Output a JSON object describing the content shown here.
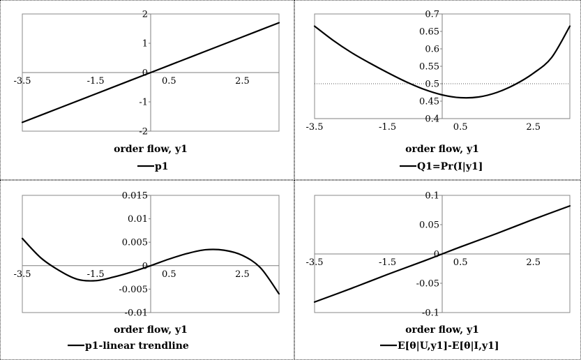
{
  "chart_data": [
    {
      "type": "line",
      "xlabel": "order flow, y1",
      "ylabel": "",
      "xlim": [
        -3.5,
        3.5
      ],
      "ylim": [
        -2,
        2
      ],
      "xticks": [
        -3.5,
        -1.5,
        0.5,
        2.5
      ],
      "xtick_labels": [
        "-3.5",
        "-1.5",
        "0.5",
        "2.5"
      ],
      "yticks": [
        -2,
        -1,
        0,
        1,
        2
      ],
      "ytick_labels": [
        "-2",
        "-1",
        "0",
        "1",
        "2"
      ],
      "reference_line": null,
      "series": [
        {
          "name": "p1",
          "color": "#000000",
          "x": [
            -3.5,
            -2.5,
            -1.5,
            -0.5,
            0,
            0.5,
            1.5,
            2.5,
            3.5
          ],
          "y": [
            -1.7,
            -1.214,
            -0.729,
            -0.243,
            0,
            0.243,
            0.729,
            1.214,
            1.7
          ]
        }
      ],
      "legend": [
        "p1"
      ]
    },
    {
      "type": "line",
      "xlabel": "order flow, y1",
      "ylabel": "",
      "xlim": [
        -3.5,
        3.5
      ],
      "ylim": [
        0.4,
        0.7
      ],
      "xticks": [
        -3.5,
        -1.5,
        0.5,
        2.5
      ],
      "xtick_labels": [
        "-3.5",
        "-1.5",
        "0.5",
        "2.5"
      ],
      "yticks": [
        0.4,
        0.45,
        0.5,
        0.55,
        0.6,
        0.65,
        0.7
      ],
      "ytick_labels": [
        "0.4",
        "0.45",
        "0.5",
        "0.55",
        "0.6",
        "0.65",
        "0.7"
      ],
      "reference_line": 0.5,
      "series": [
        {
          "name": "Q1=Pr(I|y1]",
          "color": "#000000",
          "x": [
            -3.5,
            -3.0,
            -2.5,
            -2.0,
            -1.5,
            -1.0,
            -0.5,
            0,
            0.5,
            1.0,
            1.5,
            2.0,
            2.5,
            3.0,
            3.5
          ],
          "y": [
            0.665,
            0.625,
            0.59,
            0.56,
            0.532,
            0.506,
            0.484,
            0.468,
            0.46,
            0.462,
            0.475,
            0.498,
            0.53,
            0.575,
            0.665
          ]
        }
      ],
      "legend": [
        "Q1=Pr(I|y1]"
      ]
    },
    {
      "type": "line",
      "xlabel": "order flow, y1",
      "ylabel": "",
      "xlim": [
        -3.5,
        3.5
      ],
      "ylim": [
        -0.01,
        0.015
      ],
      "xticks": [
        -3.5,
        -1.5,
        0.5,
        2.5
      ],
      "xtick_labels": [
        "-3.5",
        "-1.5",
        "0.5",
        "2.5"
      ],
      "yticks": [
        -0.01,
        -0.005,
        0,
        0.005,
        0.01,
        0.015
      ],
      "ytick_labels": [
        "-0.01",
        "-0.005",
        "0",
        "0.005",
        "0.01",
        "0.015"
      ],
      "reference_line": null,
      "series": [
        {
          "name": "p1-linear trendline",
          "color": "#000000",
          "x": [
            -3.5,
            -3.0,
            -2.5,
            -2.0,
            -1.5,
            -1.0,
            -0.5,
            0,
            0.5,
            1.0,
            1.5,
            2.0,
            2.5,
            3.0,
            3.5
          ],
          "y": [
            0.0058,
            0.0017,
            -0.001,
            -0.0029,
            -0.0032,
            -0.0024,
            -0.0013,
            0,
            0.0014,
            0.0026,
            0.0034,
            0.0033,
            0.0022,
            -0.0005,
            -0.006
          ]
        }
      ],
      "legend": [
        "p1-linear trendline"
      ]
    },
    {
      "type": "line",
      "xlabel": "order flow, y1",
      "ylabel": "",
      "xlim": [
        -3.5,
        3.5
      ],
      "ylim": [
        -0.1,
        0.1
      ],
      "xticks": [
        -3.5,
        -1.5,
        0.5,
        2.5
      ],
      "xtick_labels": [
        "-3.5",
        "-1.5",
        "0.5",
        "2.5"
      ],
      "yticks": [
        -0.1,
        -0.05,
        0,
        0.05,
        0.1
      ],
      "ytick_labels": [
        "-0.1",
        "-0.05",
        "0",
        "0.05",
        "0.1"
      ],
      "reference_line": null,
      "series": [
        {
          "name": "E[θ|U,y1]-E[θ|I,y1]",
          "color": "#000000",
          "x": [
            -3.5,
            -2.5,
            -1.5,
            -0.5,
            0,
            0.5,
            1.5,
            2.5,
            3.5
          ],
          "y": [
            -0.082,
            -0.059,
            -0.035,
            -0.012,
            0,
            0.012,
            0.035,
            0.059,
            0.082
          ]
        }
      ],
      "legend": [
        "E[θ|U,y1]-E[θ|I,y1]"
      ]
    }
  ]
}
